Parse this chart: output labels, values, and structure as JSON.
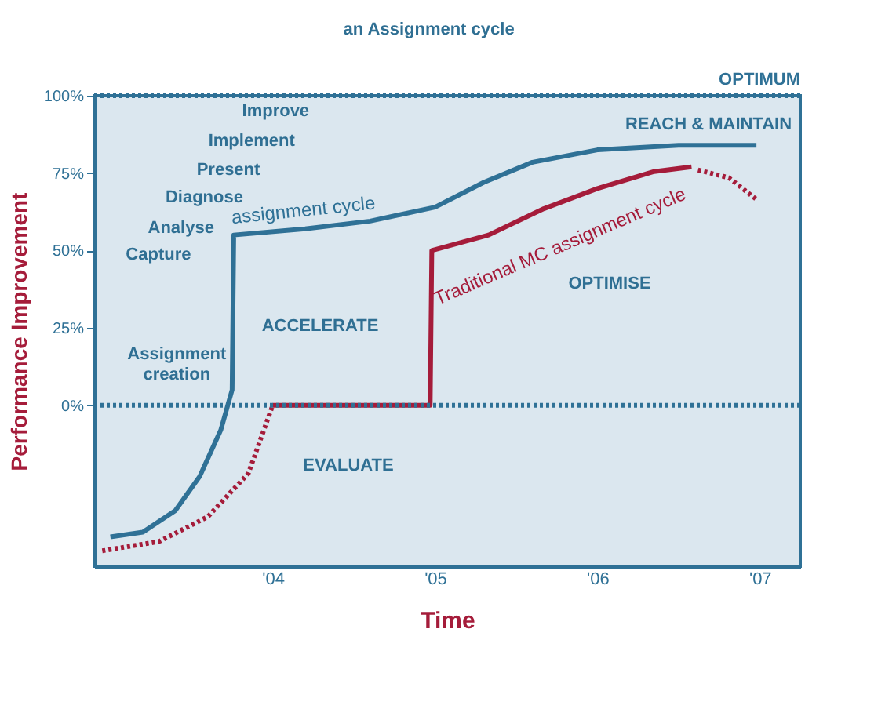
{
  "chart_data": {
    "type": "line",
    "xlabel": "Time",
    "ylabel": "Performance Improvement",
    "xlim": [
      2002.9,
      2007.25
    ],
    "ylim": [
      -52,
      100
    ],
    "xticks": [
      {
        "value": 2004,
        "label": "'04"
      },
      {
        "value": 2005,
        "label": "'05"
      },
      {
        "value": 2006,
        "label": "'06"
      },
      {
        "value": 2007,
        "label": "'07"
      }
    ],
    "yticks": [
      {
        "value": 0,
        "label": "0%"
      },
      {
        "value": 25,
        "label": "25%"
      },
      {
        "value": 50,
        "label": "50%"
      },
      {
        "value": 75,
        "label": "75%"
      },
      {
        "value": 100,
        "label": "100%"
      }
    ],
    "series": [
      {
        "name": "assignment cycle",
        "color": "#2f7196",
        "line_style": "solid",
        "x": [
          2003.0,
          2003.2,
          2003.4,
          2003.55,
          2003.68,
          2003.75,
          2003.76,
          2004.2,
          2004.6,
          2005.0,
          2005.3,
          2005.6,
          2006.0,
          2006.5,
          2006.98
        ],
        "values": [
          -42.5,
          -41,
          -34,
          -23,
          -8,
          5,
          55,
          57,
          59.5,
          64,
          72,
          78.5,
          82.5,
          84,
          84
        ]
      },
      {
        "color": "#a51c3a",
        "line_style": "dotted",
        "x": [
          2002.95,
          2003.3,
          2003.6,
          2003.85,
          2004.0
        ],
        "values": [
          -47,
          -44,
          -36,
          -22,
          0
        ]
      },
      {
        "name": "Traditional MC assignment cycle",
        "color": "#a51c3a",
        "line_style": "solid",
        "x": [
          2004.0,
          2004.97,
          2004.98,
          2005.33,
          2005.67,
          2006.0,
          2006.35,
          2006.58
        ],
        "values": [
          0,
          0,
          50,
          55,
          63.5,
          70,
          75.5,
          77
        ]
      },
      {
        "color": "#a51c3a",
        "line_style": "dotted",
        "x": [
          2006.62,
          2006.81,
          2006.98
        ],
        "values": [
          76,
          73.5,
          66.5
        ]
      }
    ],
    "ref_lines": [
      {
        "axis": "y",
        "value": 100,
        "label": "OPTIMUM",
        "color": "#2f7196",
        "line_style": "dotted"
      },
      {
        "axis": "y",
        "value": 0,
        "color": "#2f7196",
        "line_style": "dotted"
      }
    ],
    "annotations": [
      "an Assignment cycle",
      "Improve",
      "Implement",
      "Present",
      "Diagnose",
      "Analyse",
      "Capture",
      "Assignment\ncreation",
      "ACCELERATE",
      "EVALUATE",
      "OPTIMISE",
      "REACH & MAINTAIN"
    ],
    "grid": false,
    "marker": "none"
  }
}
